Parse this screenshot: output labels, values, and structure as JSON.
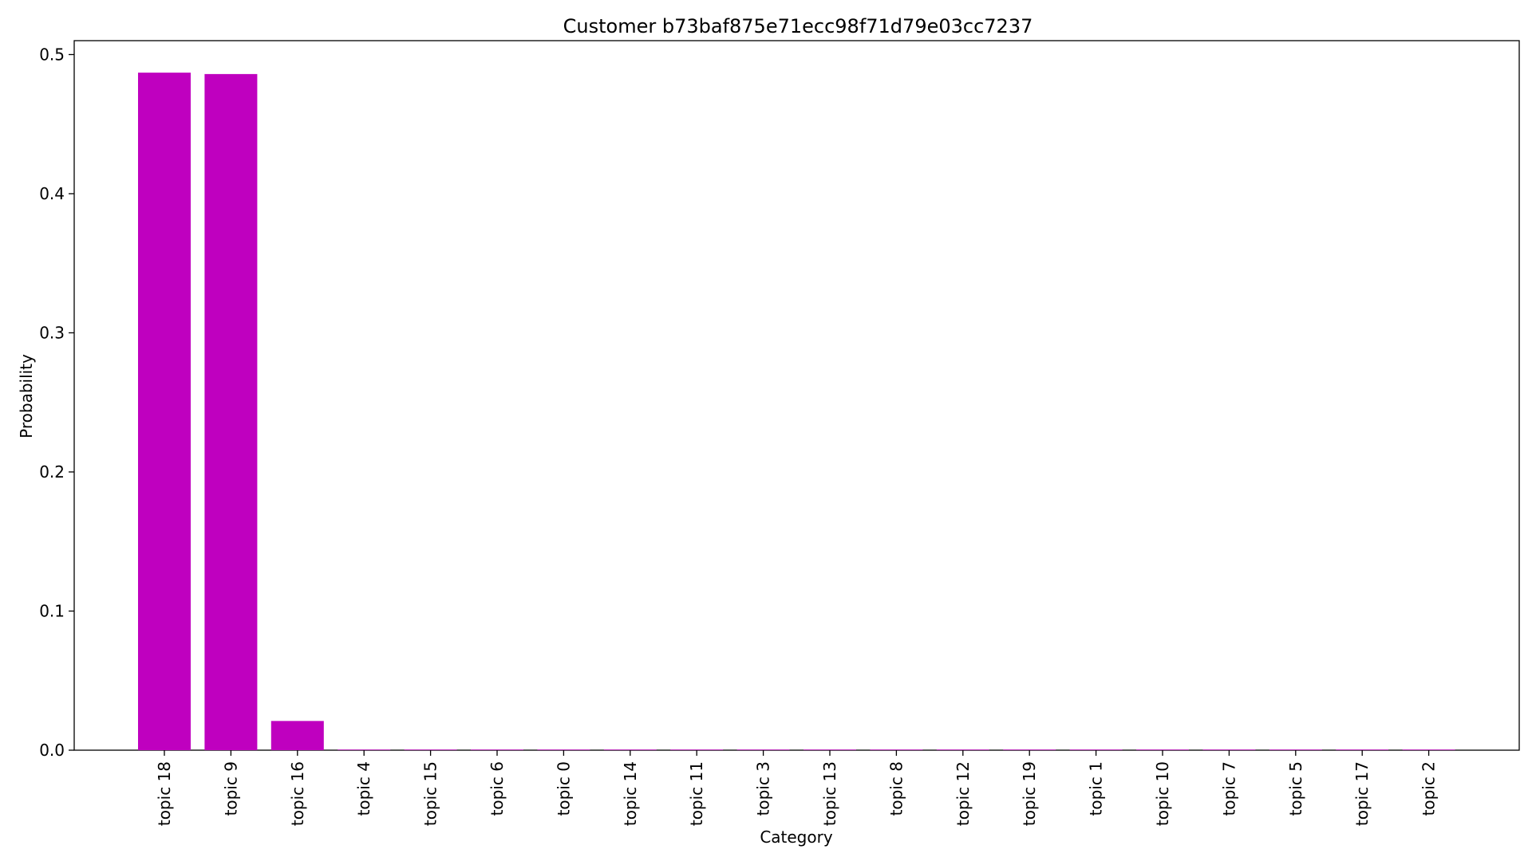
{
  "chart_data": {
    "type": "bar",
    "title": "Customer b73baf875e71ecc98f71d79e03cc7237",
    "xlabel": "Category",
    "ylabel": "Probability",
    "categories": [
      "topic 18",
      "topic 9",
      "topic 16",
      "topic 4",
      "topic 15",
      "topic 6",
      "topic 0",
      "topic 14",
      "topic 11",
      "topic 3",
      "topic 13",
      "topic 8",
      "topic 12",
      "topic 19",
      "topic 1",
      "topic 10",
      "topic 7",
      "topic 5",
      "topic 17",
      "topic 2"
    ],
    "values": [
      0.487,
      0.486,
      0.021,
      0.0004,
      0.0004,
      0.0004,
      0.0004,
      0.0004,
      0.0004,
      0.0004,
      0.0004,
      0.0004,
      0.0004,
      0.0004,
      0.0004,
      0.0004,
      0.0004,
      0.0004,
      0.0004,
      0.0004
    ],
    "ylim": [
      0,
      0.51
    ],
    "yticks": [
      "0.0",
      "0.1",
      "0.2",
      "0.3",
      "0.4",
      "0.5"
    ],
    "bar_color": "#bf00bf",
    "grid": false,
    "legend": "none"
  }
}
